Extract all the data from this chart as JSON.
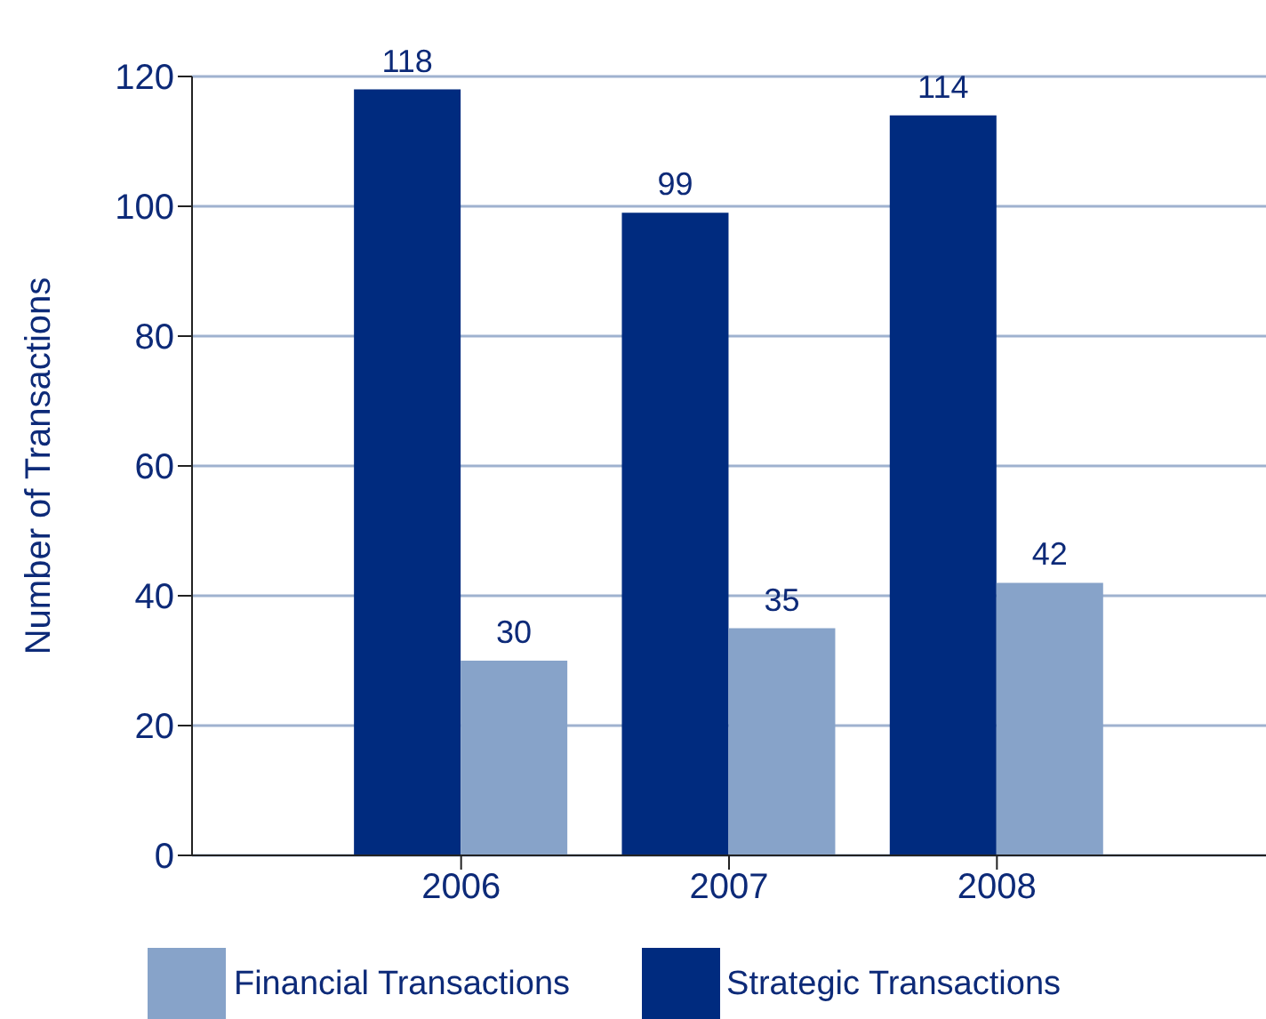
{
  "chart_data": {
    "type": "bar",
    "ylabel": "Number of Transactions",
    "categories": [
      "2006",
      "2007",
      "2008"
    ],
    "series": [
      {
        "name": "Strategic Transactions",
        "color": "#002b7f",
        "values": [
          118,
          99,
          114
        ]
      },
      {
        "name": "Financial Transactions",
        "color": "#87a3c9",
        "values": [
          30,
          35,
          42
        ]
      }
    ],
    "ylim": [
      0,
      120
    ],
    "yticks": [
      0,
      20,
      40,
      60,
      80,
      100,
      120
    ],
    "grid": "y",
    "legend": "bottom",
    "data_labels": true
  }
}
